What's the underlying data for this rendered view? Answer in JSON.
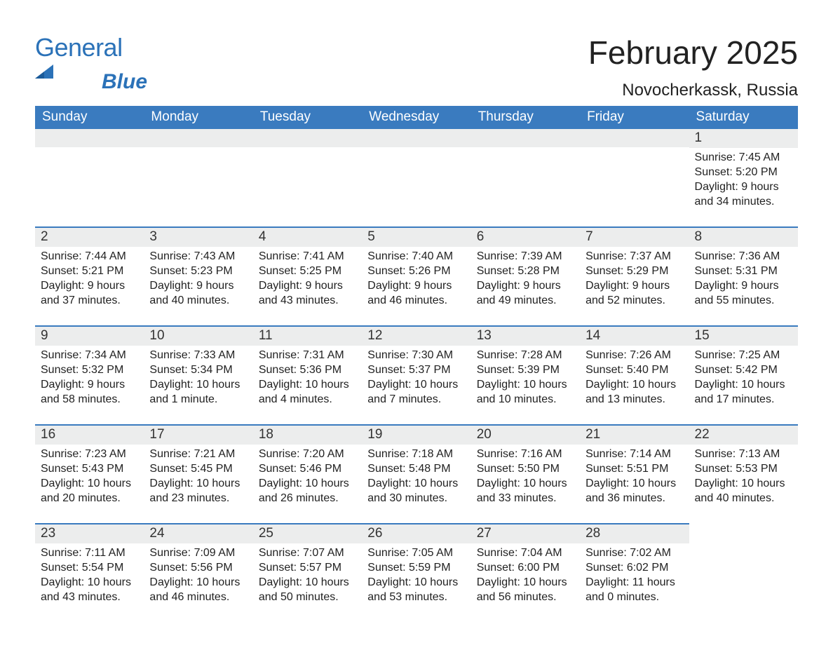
{
  "brand": {
    "word1": "General",
    "word2": "Blue",
    "brand_color": "#2b72b8"
  },
  "title": "February 2025",
  "location": "Novocherkassk, Russia",
  "colors": {
    "header_bg": "#3a7bbf",
    "header_text": "#ffffff",
    "daybar_bg": "#eceded",
    "daybar_border": "#3a7bbf",
    "page_bg": "#ffffff",
    "text": "#222222"
  },
  "weekday_labels": [
    "Sunday",
    "Monday",
    "Tuesday",
    "Wednesday",
    "Thursday",
    "Friday",
    "Saturday"
  ],
  "field_labels": {
    "sunrise": "Sunrise",
    "sunset": "Sunset",
    "daylight": "Daylight"
  },
  "weeks": [
    [
      null,
      null,
      null,
      null,
      null,
      null,
      {
        "day": "1",
        "sunrise": "7:45 AM",
        "sunset": "5:20 PM",
        "daylight": "9 hours and 34 minutes."
      }
    ],
    [
      {
        "day": "2",
        "sunrise": "7:44 AM",
        "sunset": "5:21 PM",
        "daylight": "9 hours and 37 minutes."
      },
      {
        "day": "3",
        "sunrise": "7:43 AM",
        "sunset": "5:23 PM",
        "daylight": "9 hours and 40 minutes."
      },
      {
        "day": "4",
        "sunrise": "7:41 AM",
        "sunset": "5:25 PM",
        "daylight": "9 hours and 43 minutes."
      },
      {
        "day": "5",
        "sunrise": "7:40 AM",
        "sunset": "5:26 PM",
        "daylight": "9 hours and 46 minutes."
      },
      {
        "day": "6",
        "sunrise": "7:39 AM",
        "sunset": "5:28 PM",
        "daylight": "9 hours and 49 minutes."
      },
      {
        "day": "7",
        "sunrise": "7:37 AM",
        "sunset": "5:29 PM",
        "daylight": "9 hours and 52 minutes."
      },
      {
        "day": "8",
        "sunrise": "7:36 AM",
        "sunset": "5:31 PM",
        "daylight": "9 hours and 55 minutes."
      }
    ],
    [
      {
        "day": "9",
        "sunrise": "7:34 AM",
        "sunset": "5:32 PM",
        "daylight": "9 hours and 58 minutes."
      },
      {
        "day": "10",
        "sunrise": "7:33 AM",
        "sunset": "5:34 PM",
        "daylight": "10 hours and 1 minute."
      },
      {
        "day": "11",
        "sunrise": "7:31 AM",
        "sunset": "5:36 PM",
        "daylight": "10 hours and 4 minutes."
      },
      {
        "day": "12",
        "sunrise": "7:30 AM",
        "sunset": "5:37 PM",
        "daylight": "10 hours and 7 minutes."
      },
      {
        "day": "13",
        "sunrise": "7:28 AM",
        "sunset": "5:39 PM",
        "daylight": "10 hours and 10 minutes."
      },
      {
        "day": "14",
        "sunrise": "7:26 AM",
        "sunset": "5:40 PM",
        "daylight": "10 hours and 13 minutes."
      },
      {
        "day": "15",
        "sunrise": "7:25 AM",
        "sunset": "5:42 PM",
        "daylight": "10 hours and 17 minutes."
      }
    ],
    [
      {
        "day": "16",
        "sunrise": "7:23 AM",
        "sunset": "5:43 PM",
        "daylight": "10 hours and 20 minutes."
      },
      {
        "day": "17",
        "sunrise": "7:21 AM",
        "sunset": "5:45 PM",
        "daylight": "10 hours and 23 minutes."
      },
      {
        "day": "18",
        "sunrise": "7:20 AM",
        "sunset": "5:46 PM",
        "daylight": "10 hours and 26 minutes."
      },
      {
        "day": "19",
        "sunrise": "7:18 AM",
        "sunset": "5:48 PM",
        "daylight": "10 hours and 30 minutes."
      },
      {
        "day": "20",
        "sunrise": "7:16 AM",
        "sunset": "5:50 PM",
        "daylight": "10 hours and 33 minutes."
      },
      {
        "day": "21",
        "sunrise": "7:14 AM",
        "sunset": "5:51 PM",
        "daylight": "10 hours and 36 minutes."
      },
      {
        "day": "22",
        "sunrise": "7:13 AM",
        "sunset": "5:53 PM",
        "daylight": "10 hours and 40 minutes."
      }
    ],
    [
      {
        "day": "23",
        "sunrise": "7:11 AM",
        "sunset": "5:54 PM",
        "daylight": "10 hours and 43 minutes."
      },
      {
        "day": "24",
        "sunrise": "7:09 AM",
        "sunset": "5:56 PM",
        "daylight": "10 hours and 46 minutes."
      },
      {
        "day": "25",
        "sunrise": "7:07 AM",
        "sunset": "5:57 PM",
        "daylight": "10 hours and 50 minutes."
      },
      {
        "day": "26",
        "sunrise": "7:05 AM",
        "sunset": "5:59 PM",
        "daylight": "10 hours and 53 minutes."
      },
      {
        "day": "27",
        "sunrise": "7:04 AM",
        "sunset": "6:00 PM",
        "daylight": "10 hours and 56 minutes."
      },
      {
        "day": "28",
        "sunrise": "7:02 AM",
        "sunset": "6:02 PM",
        "daylight": "11 hours and 0 minutes."
      },
      null
    ]
  ]
}
